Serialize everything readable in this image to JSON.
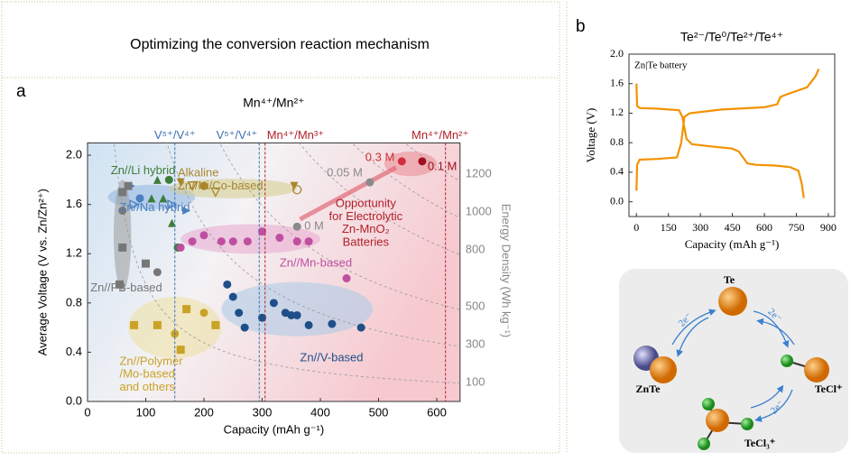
{
  "header": {
    "title": "Optimizing the conversion reaction mechanism",
    "panel_a": "a",
    "panel_b": "b"
  },
  "chart_data": [
    {
      "type": "scatter",
      "title": "Mn⁴⁺/Mn²⁺",
      "xlabel": "Capacity (mAh g⁻¹)",
      "ylabel": "Average Voltage (V vs. Zn/Zn²⁺)",
      "y2label": "Energy Density (Wh kg⁻¹)",
      "xlim": [
        0,
        640
      ],
      "ylim": [
        0,
        2.1
      ],
      "xticks": [
        0,
        100,
        200,
        300,
        400,
        500,
        600
      ],
      "yticks": [
        {
          "value": 0,
          "label": "0.0"
        },
        0.4,
        0.8,
        1.2,
        1.6,
        {
          "value": 2,
          "label": "2.0"
        }
      ],
      "energy_levels": [
        100,
        300,
        500,
        800,
        1000,
        1200
      ],
      "reference_lines": [
        {
          "x": 150,
          "label": "V⁵⁺/V⁴⁺",
          "color": "#3a6fb0"
        },
        {
          "x": 295,
          "label": "V⁵⁺/V⁴⁺",
          "color": "#3a6fb0"
        },
        {
          "x": 305,
          "label": "Mn⁴⁺/Mn³⁺",
          "color": "#b0202a"
        },
        {
          "x": 615,
          "label": "Mn⁴⁺/Mn²⁺",
          "color": "#b0202a"
        }
      ],
      "series": [
        {
          "name": "Zn//Li hybrid",
          "color": "#3d7d3a",
          "marker": "triangle",
          "x": [
            120,
            130,
            140,
            110,
            145,
            155
          ],
          "values": [
            1.8,
            1.65,
            1.8,
            1.65,
            1.45,
            1.25
          ]
        },
        {
          "name": "Zn//Na hybrid",
          "color": "#4a7fc0",
          "marker": "triangle-right",
          "x": [
            75,
            80,
            90,
            145,
            170
          ],
          "values": [
            1.75,
            1.6,
            1.65,
            1.6,
            1.55
          ]
        },
        {
          "name": "Zn//PB-based",
          "color": "#777777",
          "marker": "square",
          "x": [
            55,
            60,
            60,
            60,
            70,
            120,
            100
          ],
          "values": [
            0.95,
            1.25,
            1.55,
            1.7,
            1.75,
            1.05,
            1.12
          ]
        },
        {
          "name": "Alkaline\nZn//Ni/Co-based",
          "color": "#a8862c",
          "marker": "triangle-down",
          "x": [
            160,
            180,
            200,
            220,
            355,
            360
          ],
          "values": [
            1.78,
            1.75,
            1.75,
            1.7,
            1.75,
            1.72
          ]
        },
        {
          "name": "Zn//Mn-based",
          "color": "#c04fa0",
          "marker": "circle",
          "x": [
            160,
            180,
            200,
            230,
            250,
            275,
            300,
            330,
            360,
            380,
            445
          ],
          "values": [
            1.25,
            1.3,
            1.35,
            1.3,
            1.3,
            1.3,
            1.38,
            1.33,
            1.3,
            1.3,
            1.0
          ]
        },
        {
          "name": "Zn//V-based",
          "color": "#1f4f8a",
          "marker": "circle",
          "x": [
            240,
            250,
            260,
            270,
            300,
            320,
            340,
            350,
            360,
            380,
            420,
            470
          ],
          "values": [
            0.95,
            0.85,
            0.72,
            0.6,
            0.68,
            0.8,
            0.72,
            0.7,
            0.7,
            0.62,
            0.63,
            0.6
          ]
        },
        {
          "name": "Zn//Polymer\n/Mo-based\nand others",
          "color": "#c9a227",
          "marker": "square",
          "x": [
            80,
            120,
            150,
            160,
            170,
            200,
            220
          ],
          "values": [
            0.62,
            0.62,
            0.55,
            0.42,
            0.75,
            0.72,
            0.62
          ]
        },
        {
          "name": "Opportunity\nfor Electrolytic\nZn-MnO₂\nBatteries",
          "color": "#b0202a",
          "marker": "circle",
          "x": [
            360,
            485,
            540,
            575
          ],
          "values": [
            1.42,
            1.78,
            1.95,
            1.95
          ],
          "colors": [
            "#8a8a8a",
            "#8a8a8a",
            "#d0303a",
            "#a01020"
          ],
          "point_labels": [
            "0 M",
            "0.05 M",
            "0.3 M",
            "0.1 M"
          ]
        }
      ]
    },
    {
      "type": "line",
      "title": "Te²⁻/Te⁰/Te²⁺/Te⁴⁺",
      "xlabel": "Capacity (mAh g⁻¹)",
      "ylabel": "Voltage (V)",
      "annotation": "Zn|Te battery",
      "xlim": [
        -35,
        930
      ],
      "ylim": [
        -0.2,
        2.0
      ],
      "xticks": [
        0,
        150,
        300,
        450,
        600,
        750,
        900
      ],
      "yticks": [
        {
          "value": 0,
          "label": "0.0"
        },
        0.4,
        0.8,
        1.2,
        1.6,
        {
          "value": 2,
          "label": "2.0"
        }
      ],
      "series": [
        {
          "color": "#f39200",
          "x": [
            0,
            3,
            15,
            100,
            200,
            215,
            235,
            260,
            350,
            450,
            480,
            520,
            560,
            650,
            720,
            760,
            775,
            785
          ],
          "values": [
            1.6,
            1.3,
            1.27,
            1.26,
            1.24,
            1.15,
            0.85,
            0.78,
            0.75,
            0.72,
            0.68,
            0.52,
            0.5,
            0.49,
            0.47,
            0.42,
            0.25,
            0.05
          ]
        },
        {
          "color": "#f39200",
          "x": [
            0,
            3,
            15,
            100,
            190,
            210,
            225,
            250,
            400,
            600,
            660,
            675,
            700,
            800,
            840,
            855
          ],
          "values": [
            0.15,
            0.5,
            0.57,
            0.58,
            0.6,
            0.8,
            1.15,
            1.2,
            1.25,
            1.28,
            1.32,
            1.42,
            1.45,
            1.55,
            1.7,
            1.8
          ]
        }
      ]
    }
  ],
  "diagram": {
    "nodes": [
      "Te",
      "ZnTe",
      "TeCl⁺",
      "TeCl₃⁺"
    ],
    "arrow_labels": [
      "2e⁻",
      "2e⁻",
      "2e⁻"
    ]
  }
}
